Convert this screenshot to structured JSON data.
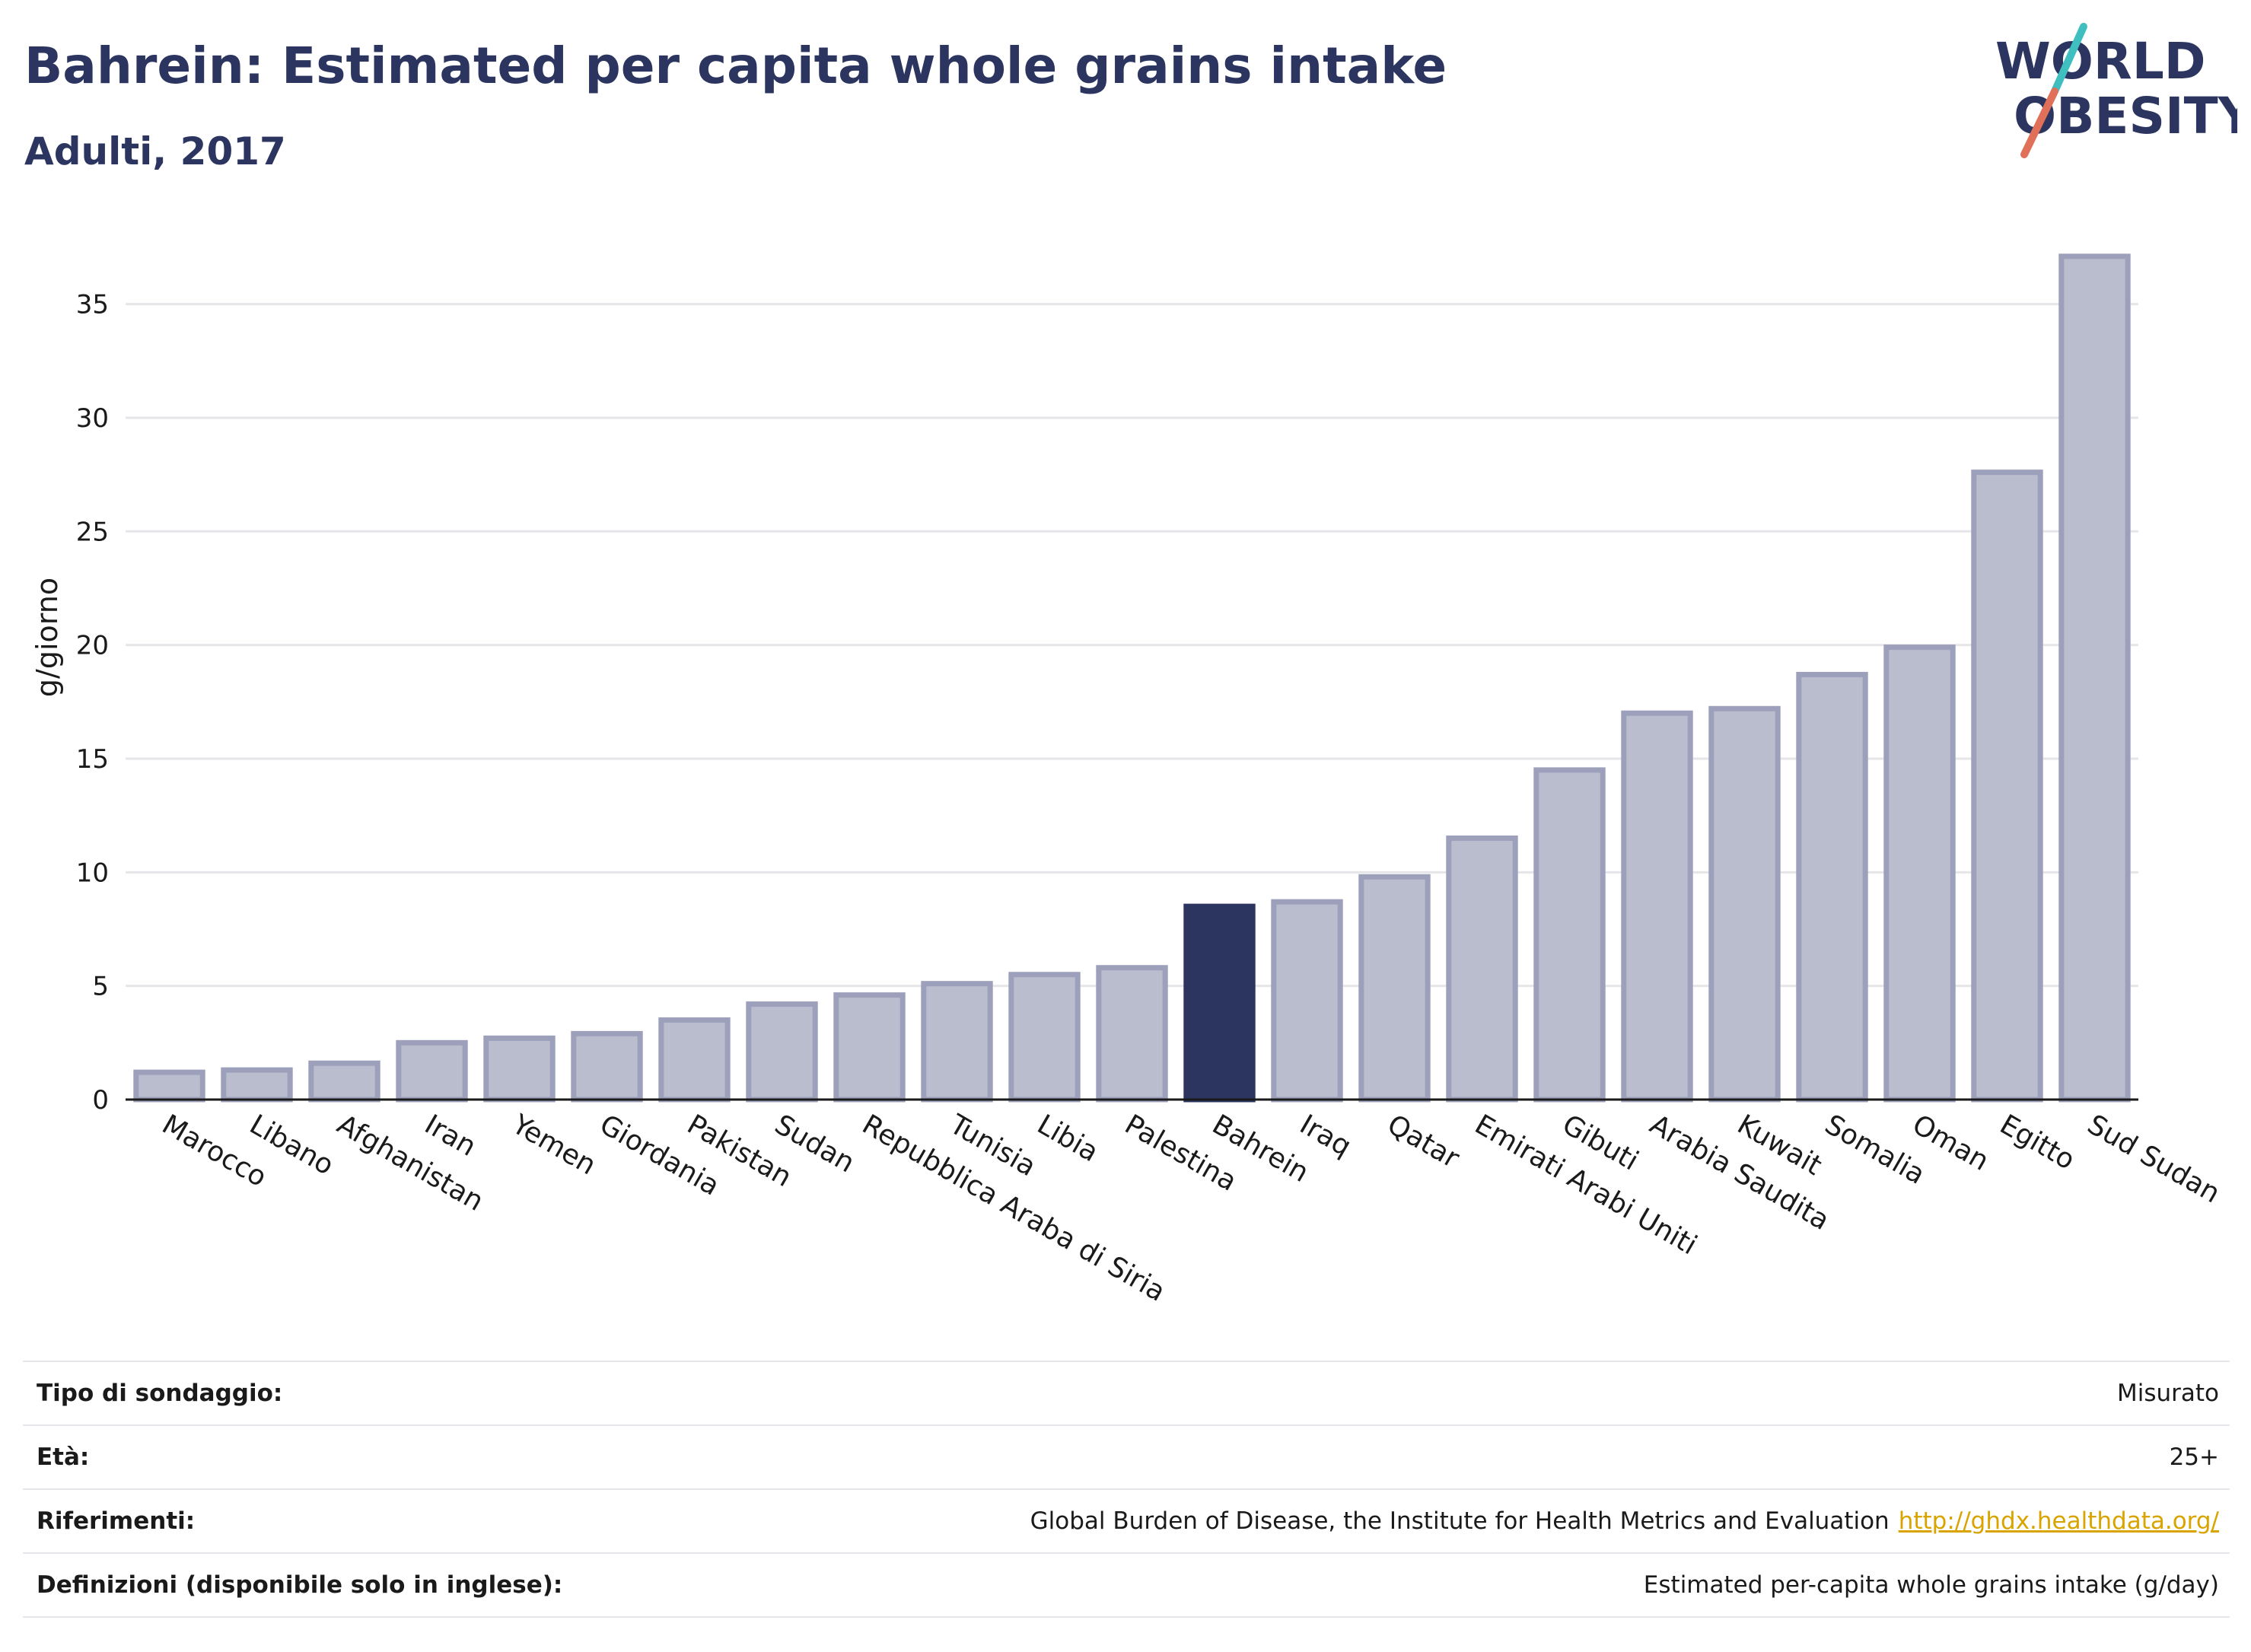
{
  "header": {
    "title": "Bahrein: Estimated per capita whole grains intake",
    "subtitle": "Adulti, 2017"
  },
  "logo": {
    "line1": "WORLD",
    "line2": "OBESITY",
    "accent_colors": [
      "#3fbfbf",
      "#e0705a"
    ]
  },
  "colors": {
    "bar": "#babdce",
    "bar_border": "#9da0bb",
    "highlight": "#2b3560",
    "grid": "#e6e6ea",
    "link": "#d9a400"
  },
  "chart_data": {
    "type": "bar",
    "categories": [
      "Marocco",
      "Libano",
      "Afghanistan",
      "Iran",
      "Yemen",
      "Giordania",
      "Pakistan",
      "Sudan",
      "Repubblica Araba di Siria",
      "Tunisia",
      "Libia",
      "Palestina",
      "Bahrein",
      "Iraq",
      "Qatar",
      "Emirati Arabi Uniti",
      "Gibuti",
      "Arabia Saudita",
      "Kuwait",
      "Somalia",
      "Oman",
      "Egitto",
      "Sud Sudan"
    ],
    "values": [
      1.2,
      1.3,
      1.6,
      2.5,
      2.7,
      2.9,
      3.5,
      4.2,
      4.6,
      5.1,
      5.5,
      5.8,
      8.5,
      8.7,
      9.8,
      11.5,
      14.5,
      17.0,
      17.2,
      18.7,
      19.9,
      27.6,
      37.1
    ],
    "highlight": "Bahrein",
    "ylabel": "g/giorno",
    "xlabel": "",
    "ylim": [
      0,
      38
    ],
    "yticks": [
      0,
      5,
      10,
      15,
      20,
      25,
      30,
      35
    ],
    "grid": true
  },
  "info": [
    {
      "key": "Tipo di sondaggio:",
      "value": "Misurato"
    },
    {
      "key": "Età:",
      "value": "25+"
    },
    {
      "key": "Riferimenti:",
      "value": "Global Burden of Disease, the Institute for Health Metrics and Evaluation",
      "link": "http://ghdx.healthdata.org/"
    },
    {
      "key": "Definizioni (disponibile solo in inglese):",
      "value": "Estimated per-capita whole grains intake (g/day)"
    }
  ]
}
